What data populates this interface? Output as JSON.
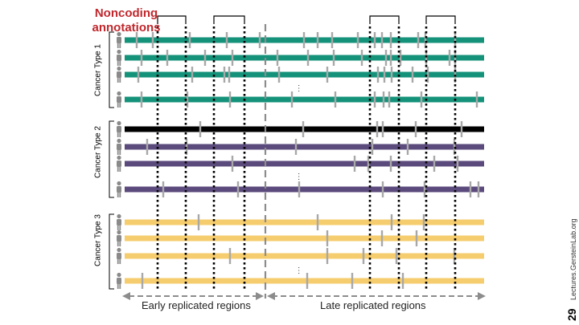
{
  "title": [
    "Noncoding",
    "annotations"
  ],
  "groups": [
    {
      "label": "Cancer Type 1",
      "color": "#15927a"
    },
    {
      "label": "Cancer Type 2",
      "color": "#5b4a7c"
    },
    {
      "label": "Cancer Type 3",
      "color": "#f6cd6e"
    }
  ],
  "highlight_track_color": "#000000",
  "early_label": "Early replicated regions",
  "late_label": "Late replicated regions",
  "ellipsis": "…",
  "slide_number": "29",
  "credit": "Lectures.GersteinLab.org",
  "colors": {
    "title": "#c0282d",
    "tick": "#a8a8a8",
    "divider": "#8c8c8c",
    "person": "#8a8a8a"
  }
}
